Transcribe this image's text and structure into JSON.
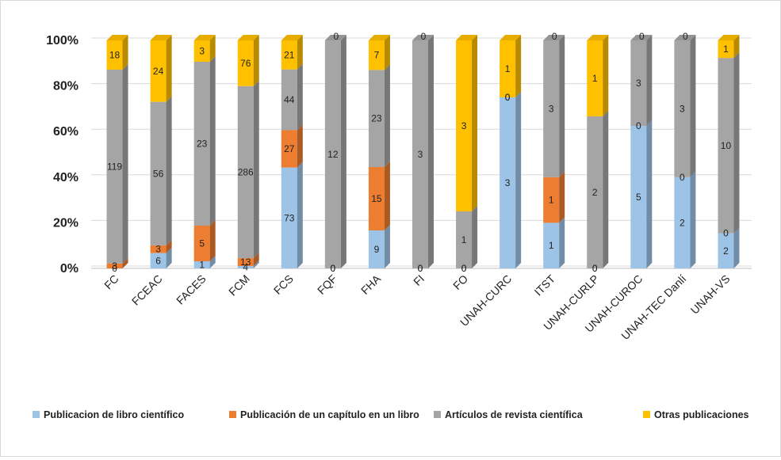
{
  "chart_data": {
    "type": "bar",
    "stacked": "percent",
    "categories": [
      "FC",
      "FCEAC",
      "FACES",
      "FCM",
      "FCS",
      "FQF",
      "FHA",
      "FI",
      "FO",
      "UNAH-CURC",
      "ITST",
      "UNAH-CURLP",
      "UNAH-CUROC",
      "UNAH-TEC Danlí",
      "UNAH-VS"
    ],
    "series": [
      {
        "name": "Publicacion de libro científico",
        "color": "#9dc3e6",
        "values": [
          0,
          6,
          1,
          4,
          73,
          0,
          9,
          0,
          0,
          3,
          1,
          0,
          5,
          2,
          2
        ]
      },
      {
        "name": "Publicación de un capítulo en un libro",
        "color": "#ed7d31",
        "values": [
          3,
          3,
          5,
          13,
          27,
          0,
          15,
          0,
          0,
          0,
          1,
          0,
          0,
          0,
          0
        ]
      },
      {
        "name": "Artículos de revista científica",
        "color": "#a5a5a5",
        "values": [
          119,
          56,
          23,
          286,
          44,
          12,
          23,
          3,
          1,
          0,
          3,
          2,
          3,
          3,
          10
        ]
      },
      {
        "name": "Otras publicaciones",
        "color": "#ffc000",
        "values": [
          18,
          24,
          3,
          76,
          21,
          0,
          7,
          0,
          3,
          1,
          0,
          1,
          0,
          0,
          1
        ]
      }
    ],
    "yticks": [
      "0%",
      "20%",
      "40%",
      "60%",
      "80%",
      "100%"
    ],
    "ylim": [
      0,
      100
    ],
    "grid": true,
    "legend": "bottom"
  }
}
